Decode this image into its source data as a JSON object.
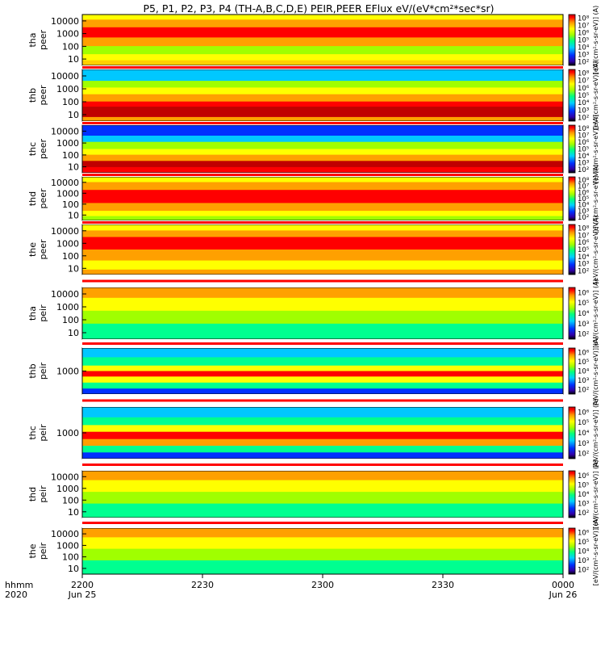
{
  "title": "P5, P1, P2, P3, P4 (TH-A,B,C,D,E) PEIR,PEER EFlux eV/(eV*cm²*sec*sr)",
  "chart_data": {
    "type": "heatmap",
    "panels": [
      {
        "id": "tha-peer",
        "ylabel1": "tha",
        "ylabel2": "peer",
        "yticks": [
          "10",
          "100",
          "1000",
          "10000"
        ],
        "cb_ticks": [
          "10²",
          "10³",
          "10⁴",
          "10⁵",
          "10⁶",
          "10⁷",
          "10⁸"
        ],
        "cb_label": "[eV/(cm²-s-sr-eV)] (A)"
      },
      {
        "id": "thb-peer",
        "ylabel1": "thb",
        "ylabel2": "peer",
        "yticks": [
          "10",
          "100",
          "1000",
          "10000"
        ],
        "cb_ticks": [
          "10²",
          "10³",
          "10⁴",
          "10⁵",
          "10⁶",
          "10⁷",
          "10⁸"
        ],
        "cb_label": "[eV/(cm²-s-sr-eV)] (A)"
      },
      {
        "id": "thc-peer",
        "ylabel1": "thc",
        "ylabel2": "peer",
        "yticks": [
          "10",
          "100",
          "1000",
          "10000"
        ],
        "cb_ticks": [
          "10²",
          "10³",
          "10⁴",
          "10⁵",
          "10⁶",
          "10⁷",
          "10⁸"
        ],
        "cb_label": "[eV/(cm²-s-sr-eV)] (A)"
      },
      {
        "id": "thd-peer",
        "ylabel1": "thd",
        "ylabel2": "peer",
        "yticks": [
          "10",
          "100",
          "1000",
          "10000"
        ],
        "cb_ticks": [
          "10²",
          "10³",
          "10⁴",
          "10⁵",
          "10⁶",
          "10⁷",
          "10⁸"
        ],
        "cb_label": "[eV/(cm²-s-sr-eV)] (A)"
      },
      {
        "id": "the-peer",
        "ylabel1": "the",
        "ylabel2": "peer",
        "yticks": [
          "10",
          "100",
          "1000",
          "10000"
        ],
        "cb_ticks": [
          "10²",
          "10³",
          "10⁴",
          "10⁵",
          "10⁶",
          "10⁷",
          "10⁸"
        ],
        "cb_label": "[eV/(cm²-s-sr-eV)] (A)"
      },
      {
        "id": "tha-peir",
        "ylabel1": "tha",
        "ylabel2": "peir",
        "yticks": [
          "10",
          "100",
          "1000",
          "10000"
        ],
        "cb_ticks": [
          "10²",
          "10³",
          "10⁴",
          "10⁵",
          "10⁶"
        ],
        "cb_label": "[eV/(cm²-s-sr-eV)] (A)"
      },
      {
        "id": "thb-peir",
        "ylabel1": "thb",
        "ylabel2": "peir",
        "yticks": [
          "1000"
        ],
        "cb_ticks": [
          "10²",
          "10³",
          "10⁴",
          "10⁵",
          "10⁶"
        ],
        "cb_label": "[eV/(cm²-s-sr-eV)] (A)"
      },
      {
        "id": "thc-peir",
        "ylabel1": "thc",
        "ylabel2": "peir",
        "yticks": [
          "1000"
        ],
        "cb_ticks": [
          "10²",
          "10³",
          "10⁴",
          "10⁵",
          "10⁶"
        ],
        "cb_label": "[eV/(cm²-s-sr-eV)] (A)"
      },
      {
        "id": "thd-peir",
        "ylabel1": "thd",
        "ylabel2": "peir",
        "yticks": [
          "10",
          "100",
          "1000",
          "10000"
        ],
        "cb_ticks": [
          "10²",
          "10³",
          "10⁴",
          "10⁵",
          "10⁶"
        ],
        "cb_label": "[eV/(cm²-s-sr-eV)] (A)"
      },
      {
        "id": "the-peir",
        "ylabel1": "the",
        "ylabel2": "peir",
        "yticks": [
          "10",
          "100",
          "1000",
          "10000"
        ],
        "cb_ticks": [
          "10²",
          "10³",
          "10⁴",
          "10⁵",
          "10⁶"
        ],
        "cb_label": "[eV/(cm²-s-sr-eV)] (A)"
      }
    ],
    "x_ticks": [
      {
        "label": "2200",
        "sub": "Jun 25"
      },
      {
        "label": "2230",
        "sub": ""
      },
      {
        "label": "2300",
        "sub": ""
      },
      {
        "label": "2330",
        "sub": ""
      },
      {
        "label": "0000",
        "sub": "Jun 26"
      }
    ],
    "xlabel_top": "hhmm",
    "xlabel_bottom": "2020",
    "colormap": [
      "#000000",
      "#2a00a0",
      "#0000ff",
      "#00c8ff",
      "#00ff90",
      "#80ff00",
      "#ffff00",
      "#ffa000",
      "#ff0000",
      "#c00000"
    ]
  }
}
